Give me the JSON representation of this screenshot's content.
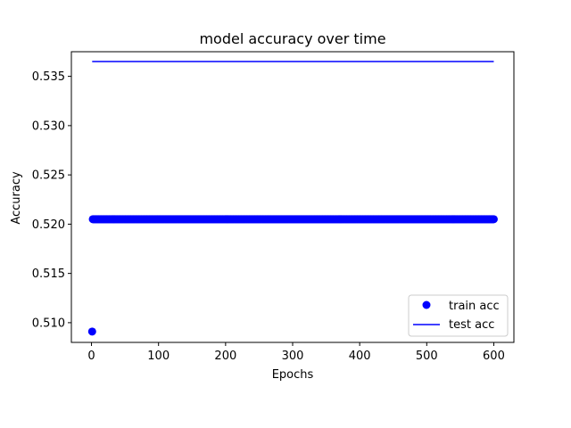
{
  "chart_data": {
    "type": "scatter",
    "title": "model accuracy over time",
    "xlabel": "Epochs",
    "ylabel": "Accuracy",
    "xlim": [
      -30,
      630
    ],
    "ylim": [
      0.508,
      0.5375
    ],
    "xticks": [
      0,
      100,
      200,
      300,
      400,
      500,
      600
    ],
    "yticks": [
      0.51,
      0.515,
      0.52,
      0.525,
      0.53,
      0.535
    ],
    "ytick_labels": [
      "0.510",
      "0.515",
      "0.520",
      "0.525",
      "0.530",
      "0.535"
    ],
    "grid": false,
    "legend_position": "lower-right",
    "series": [
      {
        "name": "train acc",
        "style": "markers",
        "color": "#0000ff",
        "x_range": [
          1,
          600
        ],
        "first_point": {
          "x": 1,
          "y": 0.5091
        },
        "value": 0.5205
      },
      {
        "name": "test acc",
        "style": "line",
        "color": "#0000ff",
        "x_range": [
          1,
          600
        ],
        "value": 0.5365
      }
    ]
  }
}
